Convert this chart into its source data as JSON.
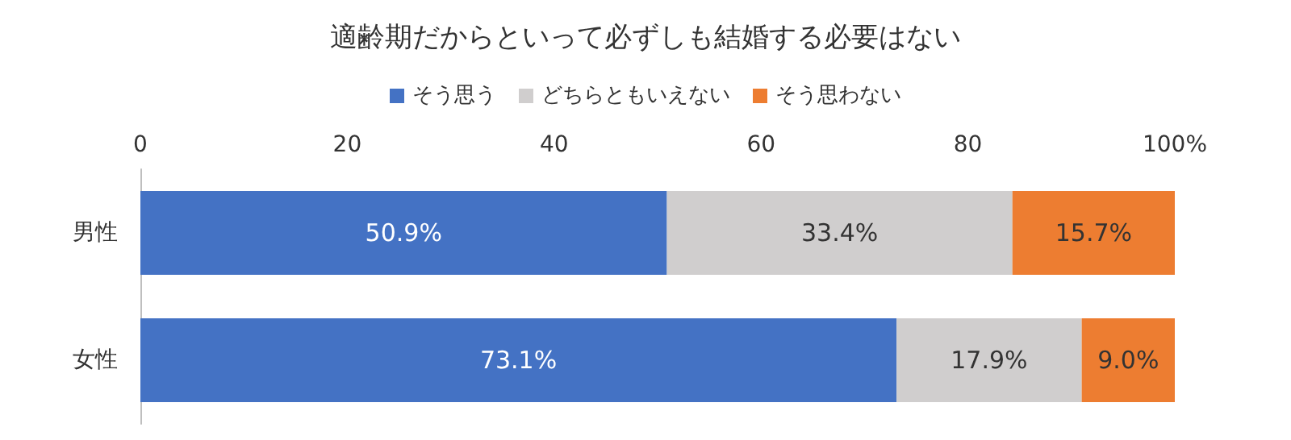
{
  "chart_data": {
    "type": "bar",
    "title": "適齢期だからといって必ずしも結婚する必要はない",
    "orientation": "horizontal",
    "stacked": true,
    "categories": [
      "男性",
      "女性"
    ],
    "series": [
      {
        "name": "そう思う",
        "color": "#4472c4",
        "values": [
          50.9,
          73.1
        ],
        "value_labels": [
          "50.9%",
          "73.1%"
        ]
      },
      {
        "name": "どちらともいえない",
        "color": "#d0cece",
        "values": [
          33.4,
          17.9
        ],
        "value_labels": [
          "33.4%",
          "17.9%"
        ]
      },
      {
        "name": "そう思わない",
        "color": "#ed7d31",
        "values": [
          15.7,
          9.0
        ],
        "value_labels": [
          "15.7%",
          "9.0%"
        ]
      }
    ],
    "xlim": [
      0,
      100
    ],
    "xticks": [
      0,
      20,
      40,
      60,
      80,
      {
        "value": 100,
        "label": "100%"
      }
    ],
    "legend": "top",
    "grid": false
  }
}
